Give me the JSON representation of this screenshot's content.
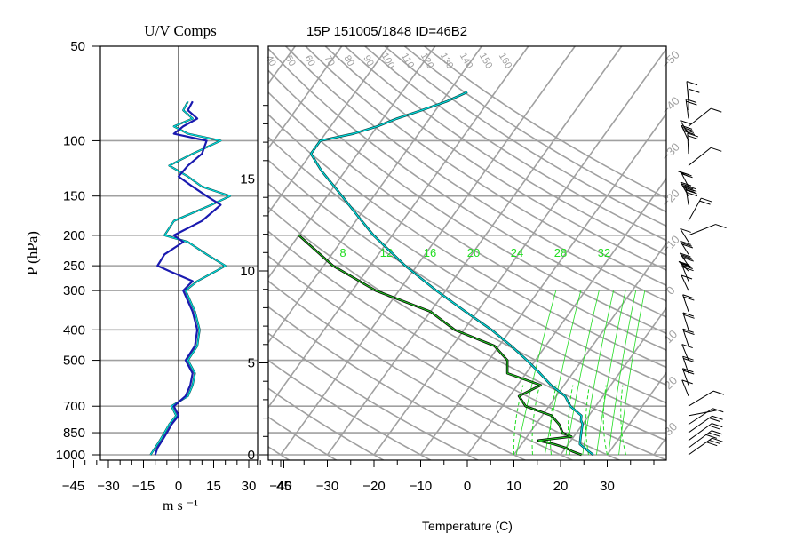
{
  "titles": {
    "uv_panel": "U/V Comps",
    "skewt_panel": "15P 151005/1848 ID=46B2"
  },
  "colors": {
    "grid": "#a0a0a0",
    "mixing": "#22dd22",
    "temp": "#000000",
    "wind_u": "#00e5e5",
    "wind_v": "#1a1ab0",
    "dew": "#22cc22"
  },
  "chart_data": [
    {
      "type": "line",
      "title": "U/V Comps",
      "xlabel": "m s ⁻¹",
      "ylabel": "P (hPa)",
      "xlim": [
        -45,
        45
      ],
      "y_scale": "log-pressure",
      "ylim": [
        1000,
        50
      ],
      "x_ticks": [
        "−45",
        "−30",
        "−15",
        "0",
        "15",
        "30",
        "45"
      ],
      "y_ticks": [
        "50",
        "100",
        "150",
        "200",
        "250",
        "300",
        "400",
        "500",
        "700",
        "850",
        "1000"
      ],
      "series": [
        {
          "p": [
            1000,
            950,
            900,
            850,
            800,
            750,
            700,
            650,
            600,
            550,
            500,
            450,
            400,
            350,
            300,
            280,
            260,
            250,
            230,
            210,
            200,
            180,
            160,
            150,
            140,
            130,
            120,
            110,
            100,
            95,
            90,
            85,
            80,
            75
          ],
          "values": [
            -12,
            -10,
            -8,
            -6,
            -4,
            -1,
            -3,
            4,
            6,
            7,
            4,
            8,
            9,
            7,
            3,
            8,
            16,
            20,
            12,
            4,
            -6,
            -2,
            14,
            22,
            10,
            4,
            -4,
            6,
            18,
            4,
            -2,
            6,
            2,
            4
          ]
        },
        {
          "p": [
            1000,
            950,
            900,
            850,
            800,
            750,
            700,
            650,
            600,
            550,
            500,
            450,
            400,
            350,
            300,
            280,
            260,
            250,
            230,
            210,
            200,
            180,
            160,
            150,
            140,
            130,
            120,
            110,
            100,
            95,
            90,
            85,
            80,
            75
          ],
          "values": [
            -10,
            -9,
            -7,
            -5,
            -3,
            0,
            -2,
            3,
            5,
            6,
            3,
            7,
            8,
            6,
            2,
            6,
            -4,
            -9,
            -6,
            2,
            -2,
            10,
            18,
            12,
            6,
            0,
            4,
            10,
            12,
            -2,
            2,
            8,
            4,
            6
          ]
        }
      ]
    },
    {
      "type": "line",
      "title": "15P 151005/1848 ID=46B2",
      "xlabel": "Temperature (C)",
      "xlim": [
        -45,
        40
      ],
      "x_ticks": [
        "−40",
        "−30",
        "−20",
        "−10",
        "0",
        "10",
        "20",
        "30"
      ],
      "y_ticks_km": [
        "0",
        "5",
        "10",
        "15"
      ],
      "isobars_hPa": [
        100,
        150,
        200,
        250,
        300,
        400,
        500,
        700,
        850,
        1000
      ],
      "mixing_ratio_labels": [
        "8",
        "12",
        "16",
        "20",
        "24",
        "28",
        "32"
      ],
      "theta_labels": [
        "40",
        "50",
        "60",
        "70",
        "80",
        "90",
        "100",
        "110",
        "120",
        "130",
        "140",
        "150",
        "160"
      ],
      "isotherm_labels": [
        "−50",
        "−40",
        "−30",
        "−20",
        "−10",
        "0",
        "10",
        "20",
        "30"
      ],
      "temperature": {
        "p": [
          1000,
          975,
          950,
          925,
          900,
          875,
          850,
          825,
          800,
          775,
          750,
          700,
          650,
          600,
          550,
          500,
          450,
          400,
          350,
          300,
          250,
          200,
          175,
          150,
          125,
          110,
          100,
          95,
          90,
          85,
          80,
          75,
          70
        ],
        "values": [
          27,
          25.5,
          24,
          22.5,
          22,
          21.5,
          21,
          20.5,
          20,
          19,
          18.4,
          14.6,
          11.9,
          7.2,
          3.0,
          -1.8,
          -7.4,
          -14.1,
          -22.5,
          -32.0,
          -42.5,
          -54.0,
          -60.0,
          -66.8,
          -75.0,
          -80.0,
          -80.0,
          -74.0,
          -70.0,
          -67.0,
          -63.0,
          -59.0,
          -56.0
        ]
      },
      "dewpoint": {
        "p": [
          1000,
          975,
          950,
          925,
          900,
          875,
          850,
          800,
          750,
          700,
          650,
          600,
          550,
          500,
          450,
          400,
          350,
          300,
          250,
          200
        ],
        "values": [
          24.5,
          22,
          20,
          17,
          13,
          19.5,
          17,
          15,
          12,
          5,
          2,
          5,
          -4,
          -6,
          -11,
          -22,
          -30,
          -45,
          -58,
          -70
        ]
      }
    }
  ]
}
